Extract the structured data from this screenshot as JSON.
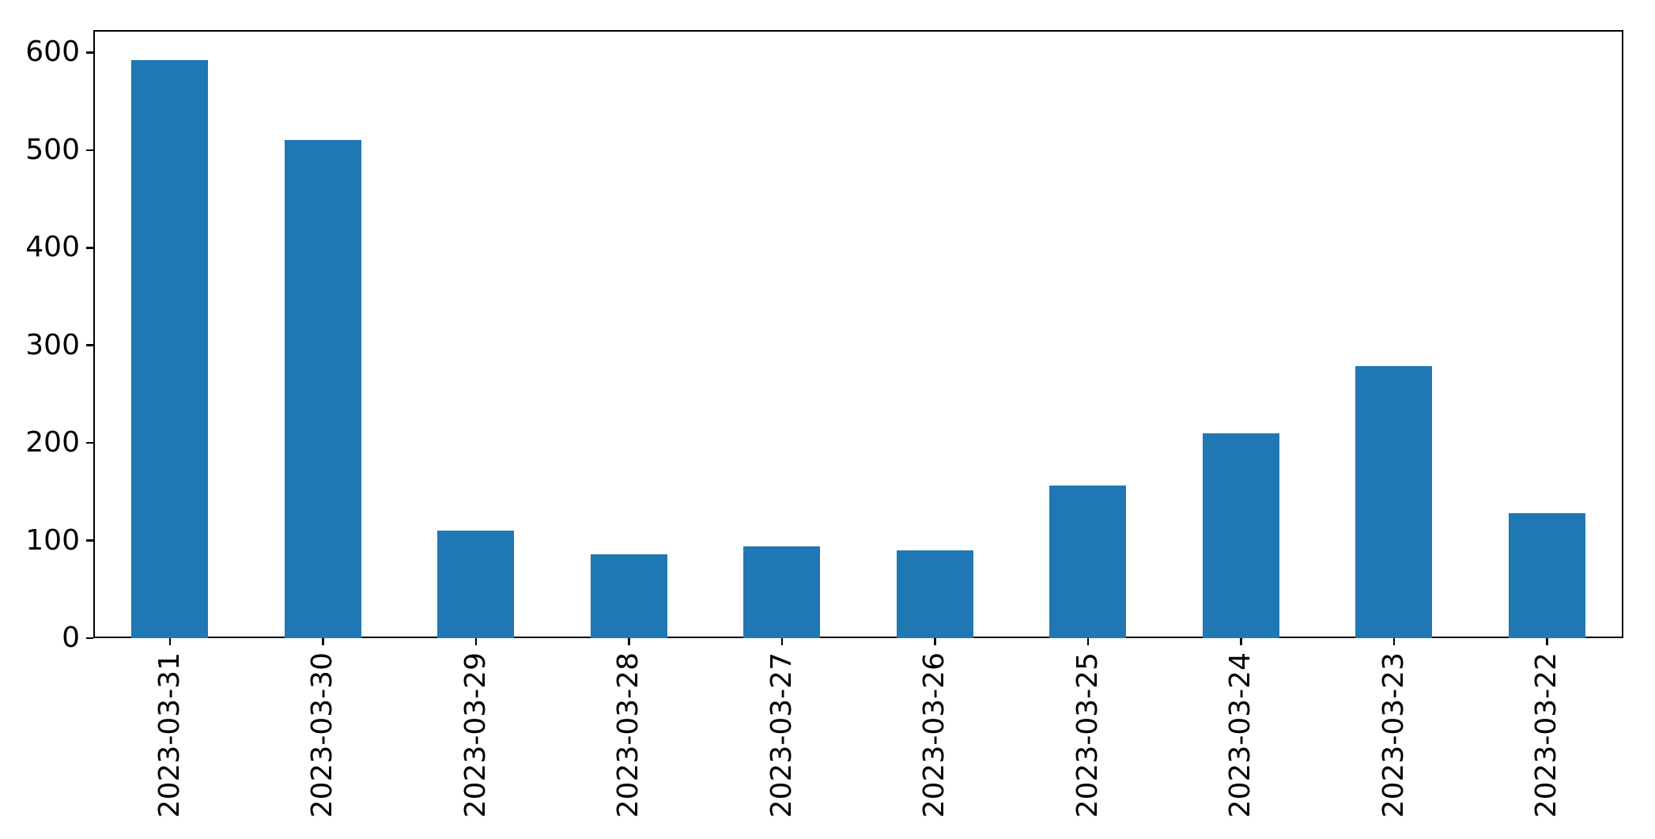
{
  "chart_data": {
    "type": "bar",
    "categories": [
      "2023-03-31",
      "2023-03-30",
      "2023-03-29",
      "2023-03-28",
      "2023-03-27",
      "2023-03-26",
      "2023-03-25",
      "2023-03-24",
      "2023-03-23",
      "2023-03-22"
    ],
    "values": [
      592,
      510,
      110,
      86,
      94,
      90,
      156,
      210,
      279,
      128
    ],
    "title": "",
    "xlabel": "",
    "ylabel": "",
    "ylim": [
      0,
      623
    ],
    "yticks": [
      0,
      100,
      200,
      300,
      400,
      500,
      600
    ],
    "grid": false,
    "legend_position": "none",
    "bar_color": "#1f77b4",
    "axis_color": "#000000",
    "background_color": "#ffffff"
  }
}
